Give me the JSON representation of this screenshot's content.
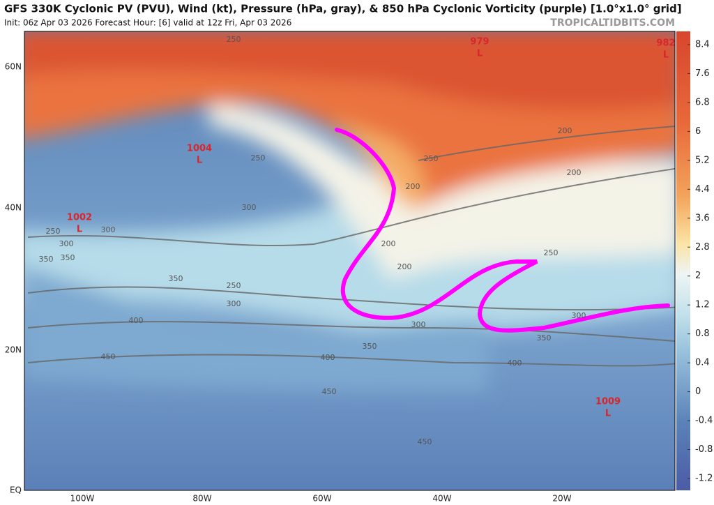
{
  "header": {
    "title": "GFS 330K Cyclonic PV (PVU), Wind (kt), Pressure (hPa, gray), & 850 hPa Cyclonic Vorticity (purple) [1.0°x1.0° grid]",
    "subtitle": "Init: 06z Apr 03 2026   Forecast Hour: [6]   valid at 12z Fri, Apr 03 2026",
    "source": "TROPICALTIDBITS.COM"
  },
  "map": {
    "lat_labels": [
      "60N",
      "40N",
      "20N",
      "EQ"
    ],
    "lon_labels": [
      "100W",
      "80W",
      "60W",
      "40W",
      "20W"
    ],
    "lows": [
      {
        "pressure": "1004",
        "symbol": "L"
      },
      {
        "pressure": "1002",
        "symbol": "L"
      },
      {
        "pressure": "979",
        "symbol": "L"
      },
      {
        "pressure": "982",
        "symbol": "L"
      },
      {
        "pressure": "1009",
        "symbol": "L"
      }
    ],
    "contour_labels": [
      "250",
      "200",
      "250",
      "200",
      "200",
      "200",
      "250",
      "300",
      "250",
      "200",
      "250",
      "300",
      "300",
      "300",
      "350",
      "350",
      "400",
      "350",
      "300",
      "350",
      "400",
      "450",
      "450",
      "400",
      "450",
      "250",
      "350",
      "300"
    ]
  },
  "colorbar": {
    "ticks": [
      8.4,
      7.6,
      6.8,
      6,
      5.2,
      4.4,
      3.6,
      2.8,
      2,
      1.2,
      0.8,
      0.4,
      0,
      -0.4,
      -0.8,
      -1.2
    ]
  }
}
